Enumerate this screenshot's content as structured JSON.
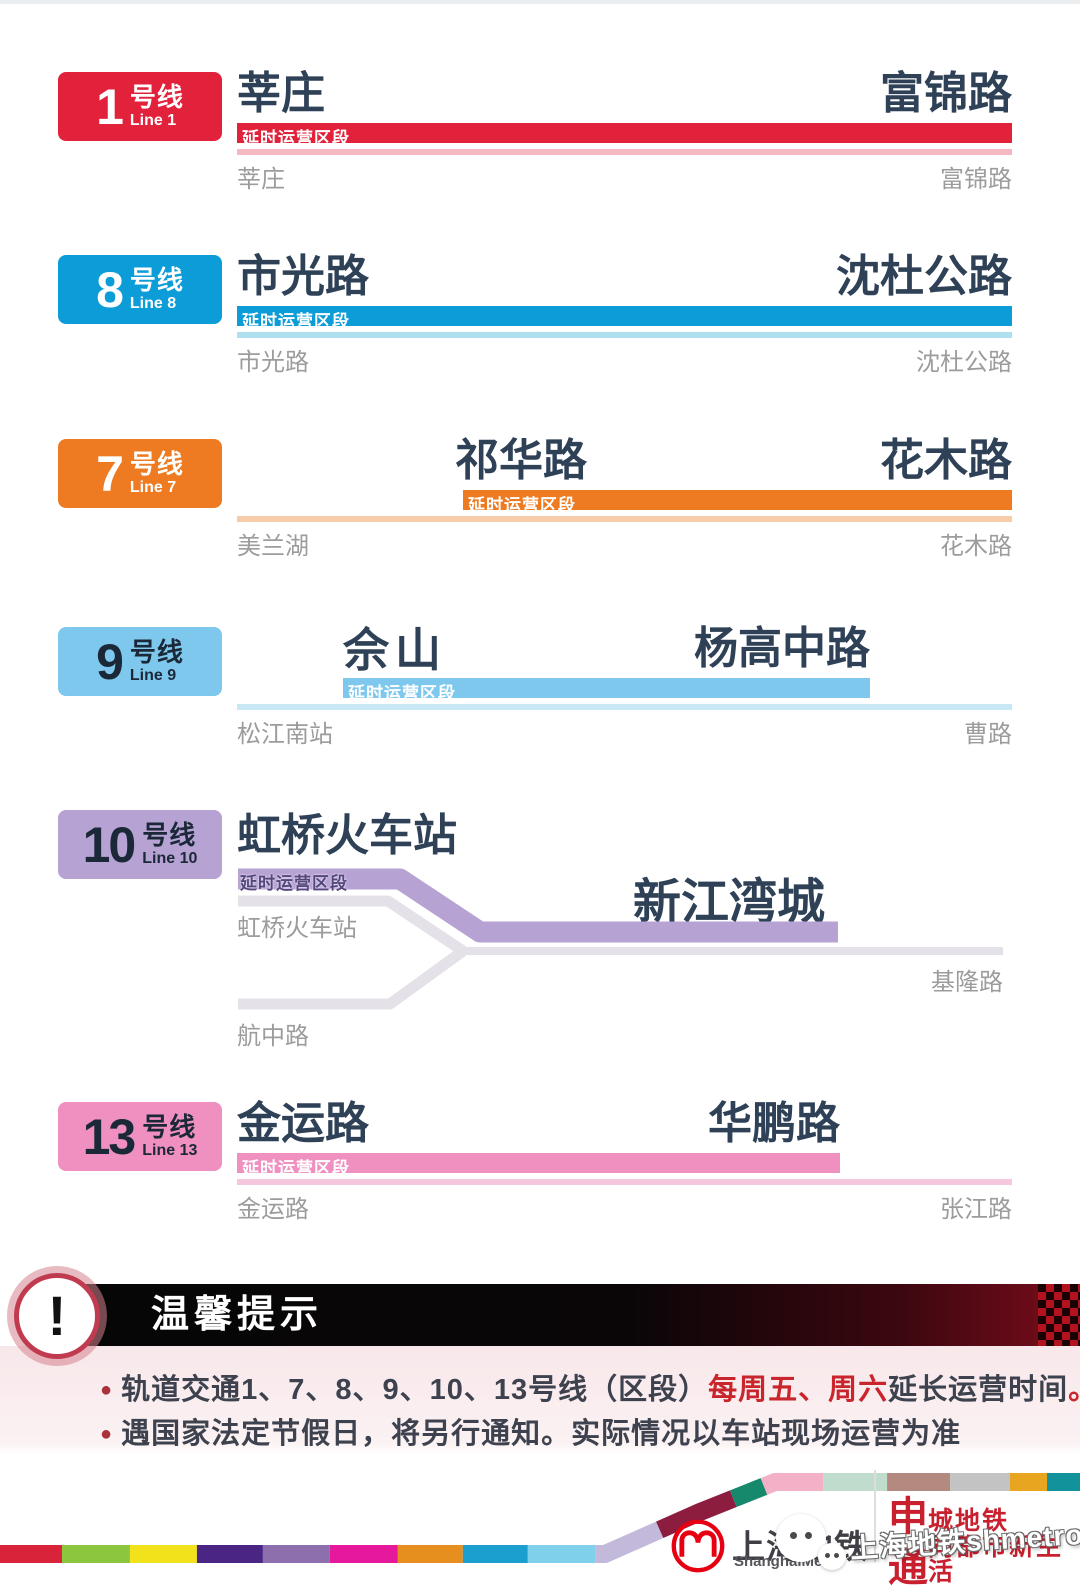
{
  "tag_label": "延时运营区段",
  "lines": [
    {
      "badge_number": "1",
      "badge_cn": "号线",
      "badge_en": "Line 1",
      "color": "#E2213A",
      "light_color": "#F4B8C3",
      "badge_text_color": "#FFFFFF",
      "tag_text_color": "#FFFFFF",
      "left_station": "莘庄",
      "right_station": "富锦路",
      "start_label": "莘庄",
      "end_label": "富锦路"
    },
    {
      "badge_number": "8",
      "badge_cn": "号线",
      "badge_en": "Line 8",
      "color": "#0C9CD8",
      "light_color": "#AEE0F0",
      "badge_text_color": "#FFFFFF",
      "tag_text_color": "#FFFFFF",
      "left_station": "市光路",
      "right_station": "沈杜公路",
      "start_label": "市光路",
      "end_label": "沈杜公路"
    },
    {
      "badge_number": "7",
      "badge_cn": "号线",
      "badge_en": "Line 7",
      "color": "#EE7B21",
      "light_color": "#F6CDA8",
      "badge_text_color": "#FFFFFF",
      "tag_text_color": "#FFFFFF",
      "left_station": "祁华路",
      "right_station": "花木路",
      "start_label": "美兰湖",
      "end_label": "花木路"
    },
    {
      "badge_number": "9",
      "badge_cn": "号线",
      "badge_en": "Line 9",
      "color": "#7EC8EE",
      "light_color": "#C8E8F5",
      "badge_text_color": "#1B2838",
      "tag_text_color": "#FFFFFF",
      "left_station": "佘山",
      "right_station": "杨高中路",
      "start_label": "松江南站",
      "end_label": "曹路"
    },
    {
      "badge_number": "10",
      "badge_cn": "号线",
      "badge_en": "Line 10",
      "color": "#B7A2D4",
      "light_color": "#E4E1E8",
      "badge_text_color": "#1B2838",
      "tag_text_color": "#54477E",
      "left_station": "虹桥火车站",
      "right_station": "新江湾城",
      "start_label": "虹桥火车站",
      "end_label": "基隆路",
      "branch_label": "航中路"
    },
    {
      "badge_number": "13",
      "badge_cn": "号线",
      "badge_en": "Line 13",
      "color": "#F090C0",
      "light_color": "#F6C6DF",
      "badge_text_color": "#1B2838",
      "tag_text_color": "#FFFFFF",
      "left_station": "金运路",
      "right_station": "华鹏路",
      "start_label": "金运路",
      "end_label": "张江路"
    }
  ],
  "notice": {
    "icon_glyph": "!",
    "title": "温馨提示",
    "bullet_glyph": "●",
    "red_color": "#C9252C",
    "bullets": [
      {
        "segments": [
          {
            "text": "轨道交通1、7、8、9、10、13号线（区段）",
            "red": false
          },
          {
            "text": "每周五、周六",
            "red": true
          },
          {
            "text": "延长运营时间",
            "red": false
          },
          {
            "text": "。",
            "red": true
          }
        ]
      },
      {
        "segments": [
          {
            "text": "遇国家法定节假日，将另行通知。实际情况以车站现场运营为准",
            "red": false
          }
        ]
      }
    ]
  },
  "footer": {
    "logo_cn": "上海地铁",
    "logo_en": "ShanghaiMetro",
    "slogan_rows": [
      {
        "big": "申",
        "rest": "城地铁"
      },
      {
        "big": "通",
        "rest": "同都市新生活"
      }
    ],
    "watermark_text": "上海地铁shmetro",
    "stripe_segments": [
      {
        "from": 0,
        "to": 62,
        "color": "#D8233A"
      },
      {
        "from": 62,
        "to": 130,
        "color": "#8CC63E"
      },
      {
        "from": 130,
        "to": 197,
        "color": "#F2E21C"
      },
      {
        "from": 197,
        "to": 263,
        "color": "#4A2583"
      },
      {
        "from": 263,
        "to": 330,
        "color": "#8E6FAE"
      },
      {
        "from": 330,
        "to": 398,
        "color": "#E6189B"
      },
      {
        "from": 398,
        "to": 463,
        "color": "#E78F1E"
      },
      {
        "from": 463,
        "to": 528,
        "color": "#1B9FCE"
      },
      {
        "from": 528,
        "to": 596,
        "color": "#7FD0EB"
      },
      {
        "from": 596,
        "to": 665,
        "color": "#C3BADB"
      },
      {
        "from": 665,
        "to": 745,
        "color": "#8C1D3F"
      },
      {
        "from": 745,
        "to": 778,
        "color": "#16886C"
      },
      {
        "from": 778,
        "to": 838,
        "color": "#F2B1C6"
      },
      {
        "from": 838,
        "to": 902,
        "color": "#BFDCCD"
      },
      {
        "from": 902,
        "to": 965,
        "color": "#B4897F"
      },
      {
        "from": 965,
        "to": 1025,
        "color": "#C3C3C3"
      },
      {
        "from": 1025,
        "to": 1062,
        "color": "#E8A51F"
      },
      {
        "from": 1062,
        "to": 1095,
        "color": "#12939B"
      }
    ]
  }
}
